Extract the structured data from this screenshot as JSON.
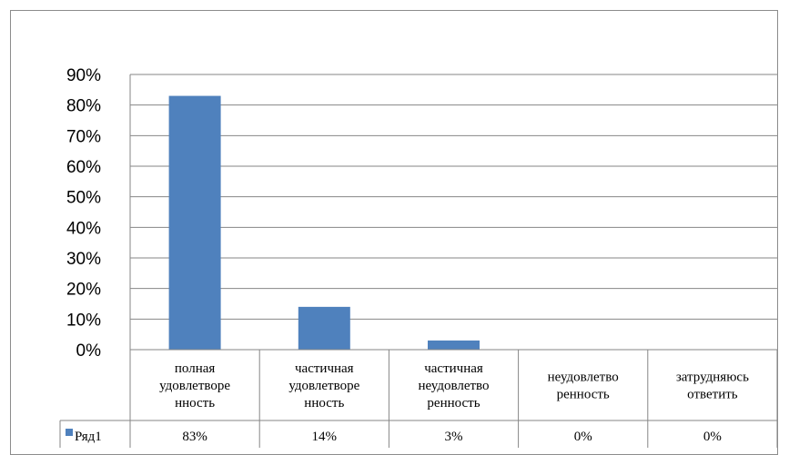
{
  "chart_data": {
    "type": "bar",
    "categories": [
      [
        "полная",
        "удовлетворе",
        "нность"
      ],
      [
        "частичная",
        "удовлетворе",
        "нность"
      ],
      [
        "частичная",
        "неудовлетво",
        "ренность"
      ],
      [
        "неудовлетво",
        "ренность"
      ],
      [
        "затрудняюсь",
        "ответить"
      ]
    ],
    "series": [
      {
        "name": "Ряд1",
        "values": [
          83,
          14,
          3,
          0,
          0
        ],
        "value_labels": [
          "83%",
          "14%",
          "3%",
          "0%",
          "0%"
        ]
      }
    ],
    "ylim": [
      0,
      90
    ],
    "yticks": [
      "0%",
      "10%",
      "20%",
      "30%",
      "40%",
      "50%",
      "60%",
      "70%",
      "80%",
      "90%"
    ],
    "grid": true,
    "legend": "data-table",
    "colors": {
      "bar": "#4f81bd",
      "grid": "#868686",
      "axis": "#868686",
      "text": "#000000"
    }
  }
}
